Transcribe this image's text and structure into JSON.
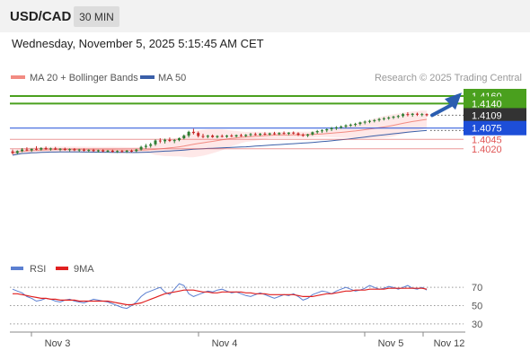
{
  "header": {
    "pair": "USD/CAD",
    "timeframe": "30 MIN",
    "datetime": "Wednesday, November 5, 2025 5:15:45 AM CET"
  },
  "legend": {
    "ma20": "MA 20 + Bollinger Bands",
    "ma50": "MA 50",
    "credit": "Research © 2025 Trading Central",
    "rsi": "RSI",
    "rsi_ma": "9MA"
  },
  "colors": {
    "candle_up": "#2e7d32",
    "candle_down": "#c62828",
    "ma20": "#f28b82",
    "bollinger_fill": "#fde0e0",
    "ma50": "#3a5fa8",
    "resistance": "#4aa01e",
    "pivot": "#1d4ed8",
    "support": "#e05555",
    "current_price": "#333333",
    "arrow": "#2a5db0",
    "rsi": "#5b7fd1",
    "rsi_ma": "#e02020"
  },
  "chart_data": [
    {
      "type": "candlestick",
      "y_range": [
        1.3985,
        1.418
      ],
      "x_labels": [
        "Nov 3",
        "Nov 4",
        "Nov 5",
        "Nov 12"
      ],
      "candles_ohlc": [
        [
          1.4013,
          1.4018,
          1.4005,
          1.4009
        ],
        [
          1.4009,
          1.4016,
          1.4006,
          1.4014
        ],
        [
          1.4014,
          1.4022,
          1.4011,
          1.4018
        ],
        [
          1.4018,
          1.4024,
          1.4014,
          1.4016
        ],
        [
          1.4016,
          1.4021,
          1.4012,
          1.402
        ],
        [
          1.402,
          1.4027,
          1.4016,
          1.4018
        ],
        [
          1.4018,
          1.4024,
          1.4015,
          1.4022
        ],
        [
          1.4022,
          1.4026,
          1.4017,
          1.4019
        ],
        [
          1.4019,
          1.4023,
          1.4015,
          1.4021
        ],
        [
          1.4021,
          1.4025,
          1.4017,
          1.4018
        ],
        [
          1.4018,
          1.4022,
          1.4014,
          1.402
        ],
        [
          1.402,
          1.4023,
          1.4015,
          1.4017
        ],
        [
          1.4017,
          1.4021,
          1.4013,
          1.4019
        ],
        [
          1.4019,
          1.4022,
          1.4014,
          1.4016
        ],
        [
          1.4016,
          1.402,
          1.4012,
          1.4018
        ],
        [
          1.4018,
          1.4021,
          1.4013,
          1.4015
        ],
        [
          1.4015,
          1.4019,
          1.4011,
          1.4017
        ],
        [
          1.4017,
          1.402,
          1.4012,
          1.4014
        ],
        [
          1.4014,
          1.4018,
          1.401,
          1.4016
        ],
        [
          1.4016,
          1.4019,
          1.4011,
          1.4013
        ],
        [
          1.4013,
          1.4017,
          1.401,
          1.4015
        ],
        [
          1.4015,
          1.4018,
          1.401,
          1.4012
        ],
        [
          1.4012,
          1.4016,
          1.4009,
          1.4014
        ],
        [
          1.4014,
          1.4017,
          1.401,
          1.4013
        ],
        [
          1.4013,
          1.4017,
          1.4009,
          1.4015
        ],
        [
          1.4015,
          1.4018,
          1.4011,
          1.4014
        ],
        [
          1.4014,
          1.402,
          1.4011,
          1.4018
        ],
        [
          1.4018,
          1.4028,
          1.4015,
          1.4025
        ],
        [
          1.4025,
          1.4033,
          1.402,
          1.4028
        ],
        [
          1.4028,
          1.4036,
          1.4023,
          1.4032
        ],
        [
          1.4032,
          1.4045,
          1.4028,
          1.4042
        ],
        [
          1.4042,
          1.4048,
          1.4035,
          1.404
        ],
        [
          1.404,
          1.4047,
          1.4034,
          1.4044
        ],
        [
          1.4044,
          1.405,
          1.4038,
          1.4041
        ],
        [
          1.4041,
          1.4046,
          1.4035,
          1.4043
        ],
        [
          1.4043,
          1.405,
          1.404,
          1.4048
        ],
        [
          1.4048,
          1.4058,
          1.4045,
          1.4055
        ],
        [
          1.4055,
          1.4068,
          1.405,
          1.4065
        ],
        [
          1.4065,
          1.4073,
          1.4058,
          1.4062
        ],
        [
          1.4062,
          1.4066,
          1.405,
          1.4054
        ],
        [
          1.4054,
          1.406,
          1.4048,
          1.4052
        ],
        [
          1.4052,
          1.4057,
          1.4048,
          1.4055
        ],
        [
          1.4055,
          1.4058,
          1.4049,
          1.4051
        ],
        [
          1.4051,
          1.4056,
          1.4048,
          1.4054
        ],
        [
          1.4054,
          1.4058,
          1.405,
          1.4052
        ],
        [
          1.4052,
          1.4057,
          1.4049,
          1.4055
        ],
        [
          1.4055,
          1.4059,
          1.4051,
          1.4053
        ],
        [
          1.4053,
          1.4058,
          1.405,
          1.4056
        ],
        [
          1.4056,
          1.406,
          1.4052,
          1.4054
        ],
        [
          1.4054,
          1.4059,
          1.4051,
          1.4057
        ],
        [
          1.4057,
          1.4062,
          1.4053,
          1.4059
        ],
        [
          1.4059,
          1.4063,
          1.4055,
          1.4057
        ],
        [
          1.4057,
          1.4062,
          1.4054,
          1.406
        ],
        [
          1.406,
          1.4064,
          1.4056,
          1.4058
        ],
        [
          1.4058,
          1.4063,
          1.4055,
          1.4061
        ],
        [
          1.4061,
          1.4065,
          1.4057,
          1.4059
        ],
        [
          1.4059,
          1.4064,
          1.4056,
          1.4062
        ],
        [
          1.4062,
          1.4066,
          1.4058,
          1.406
        ],
        [
          1.406,
          1.4064,
          1.4056,
          1.4063
        ],
        [
          1.4063,
          1.4066,
          1.4058,
          1.4061
        ],
        [
          1.4061,
          1.4064,
          1.4054,
          1.4057
        ],
        [
          1.4057,
          1.4061,
          1.4052,
          1.4055
        ],
        [
          1.4055,
          1.406,
          1.4051,
          1.4058
        ],
        [
          1.4058,
          1.4066,
          1.4055,
          1.4064
        ],
        [
          1.4064,
          1.407,
          1.406,
          1.4067
        ],
        [
          1.4067,
          1.4072,
          1.4062,
          1.4069
        ],
        [
          1.4069,
          1.4074,
          1.4064,
          1.4072
        ],
        [
          1.4072,
          1.4078,
          1.4067,
          1.4075
        ],
        [
          1.4075,
          1.408,
          1.407,
          1.4077
        ],
        [
          1.4077,
          1.4082,
          1.4073,
          1.4079
        ],
        [
          1.4079,
          1.4085,
          1.4075,
          1.4082
        ],
        [
          1.4082,
          1.4087,
          1.4078,
          1.4084
        ],
        [
          1.4084,
          1.4089,
          1.4079,
          1.4086
        ],
        [
          1.4086,
          1.4092,
          1.4082,
          1.409
        ],
        [
          1.409,
          1.4095,
          1.4085,
          1.4092
        ],
        [
          1.4092,
          1.4097,
          1.4088,
          1.4094
        ],
        [
          1.4094,
          1.4099,
          1.409,
          1.4096
        ],
        [
          1.4096,
          1.4102,
          1.4092,
          1.4099
        ],
        [
          1.4099,
          1.4104,
          1.4095,
          1.4101
        ],
        [
          1.4101,
          1.4106,
          1.4097,
          1.4103
        ],
        [
          1.4103,
          1.4108,
          1.4099,
          1.4105
        ],
        [
          1.4105,
          1.411,
          1.4101,
          1.4107
        ],
        [
          1.4107,
          1.4115,
          1.4103,
          1.4112
        ],
        [
          1.4112,
          1.4117,
          1.4106,
          1.411
        ],
        [
          1.411,
          1.4115,
          1.4105,
          1.4113
        ],
        [
          1.4113,
          1.4116,
          1.4107,
          1.4111
        ],
        [
          1.4111,
          1.4115,
          1.4106,
          1.4112
        ],
        [
          1.4112,
          1.4114,
          1.4106,
          1.4109
        ]
      ],
      "levels": [
        {
          "value": 1.416,
          "label": "1.4160",
          "kind": "resistance"
        },
        {
          "value": 1.414,
          "label": "1.4140",
          "kind": "resistance"
        },
        {
          "value": 1.4109,
          "label": "1.4109",
          "kind": "current"
        },
        {
          "value": 1.4075,
          "label": "1.4075",
          "kind": "pivot"
        },
        {
          "value": 1.4045,
          "label": "1.4045",
          "kind": "support"
        },
        {
          "value": 1.402,
          "label": "1.4020",
          "kind": "support"
        }
      ],
      "arrow": {
        "from_price": 1.4109,
        "to_price": 1.415
      }
    },
    {
      "type": "line",
      "name": "RSI panel",
      "y_range": [
        25,
        80
      ],
      "y_ticks": [
        70,
        50,
        30
      ],
      "rsi": [
        68,
        66,
        64,
        60,
        58,
        55,
        56,
        58,
        57,
        55,
        54,
        56,
        57,
        55,
        54,
        53,
        55,
        57,
        56,
        55,
        54,
        52,
        50,
        48,
        47,
        50,
        54,
        60,
        64,
        66,
        68,
        70,
        65,
        62,
        68,
        74,
        72,
        63,
        60,
        62,
        64,
        66,
        65,
        67,
        68,
        66,
        64,
        65,
        63,
        61,
        60,
        62,
        64,
        62,
        60,
        58,
        60,
        62,
        61,
        63,
        60,
        56,
        58,
        62,
        64,
        66,
        65,
        63,
        66,
        68,
        70,
        68,
        66,
        67,
        69,
        72,
        70,
        68,
        69,
        71,
        70,
        68,
        70,
        72,
        69,
        68,
        70,
        67
      ],
      "rsi_ma": [
        63,
        63,
        62,
        61,
        60,
        59,
        58,
        58,
        57,
        57,
        56,
        56,
        56,
        56,
        55,
        55,
        55,
        55,
        55,
        55,
        55,
        54,
        53,
        52,
        51,
        51,
        52,
        53,
        55,
        57,
        59,
        61,
        63,
        64,
        65,
        66,
        67,
        67,
        67,
        66,
        65,
        65,
        64,
        64,
        65,
        65,
        65,
        65,
        65,
        64,
        64,
        63,
        63,
        63,
        62,
        62,
        62,
        62,
        62,
        62,
        61,
        60,
        60,
        60,
        61,
        62,
        63,
        63,
        64,
        65,
        66,
        66,
        67,
        67,
        67,
        68,
        68,
        68,
        68,
        69,
        69,
        69,
        69,
        69,
        69,
        69,
        69,
        68
      ]
    }
  ]
}
